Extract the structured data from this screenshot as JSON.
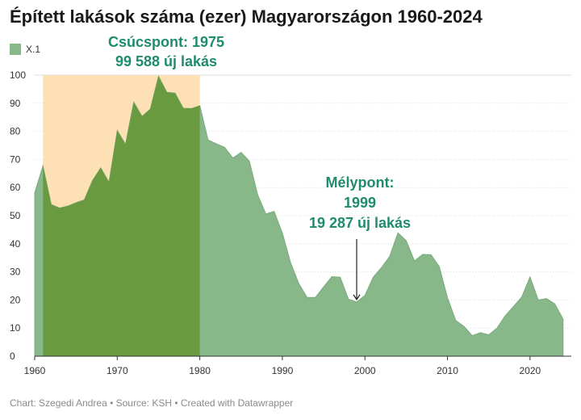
{
  "header": {
    "title": "Épített lakások száma (ezer) Magyarországon 1960-2024"
  },
  "legend": {
    "series_label": "X.1"
  },
  "footer": {
    "chart_by": "Chart: Szegedi Andrea",
    "source": "Source: KSH",
    "created_with": "Created with Datawrapper",
    "separator": " • "
  },
  "colors": {
    "area_fill": "#88b88a",
    "area_stroke": "#7aaa7c",
    "highlight_band": "#fde0b3",
    "overlap_fill": "#6a9a40",
    "annotation_text": "#1f8c6e",
    "grid": "#dddddd",
    "axis": "#333333"
  },
  "chart_data": {
    "type": "area",
    "title": "Épített lakások száma (ezer) Magyarországon 1960-2024",
    "xlabel": "",
    "ylabel": "",
    "xlim": [
      1960,
      2025
    ],
    "ylim": [
      0,
      100
    ],
    "x_ticks": [
      1960,
      1970,
      1980,
      1990,
      2000,
      2010,
      2020
    ],
    "y_ticks": [
      0,
      10,
      20,
      30,
      40,
      50,
      60,
      70,
      80,
      90,
      100
    ],
    "grid": true,
    "legend_position": "top-left",
    "highlight_range": {
      "x_start": 1961,
      "x_end": 1980
    },
    "series": [
      {
        "name": "X.1",
        "x": [
          1960,
          1961,
          1962,
          1963,
          1964,
          1965,
          1966,
          1967,
          1968,
          1969,
          1970,
          1971,
          1972,
          1973,
          1974,
          1975,
          1976,
          1977,
          1978,
          1979,
          1980,
          1981,
          1982,
          1983,
          1984,
          1985,
          1986,
          1987,
          1988,
          1989,
          1990,
          1991,
          1992,
          1993,
          1994,
          1995,
          1996,
          1997,
          1998,
          1999,
          2000,
          2001,
          2002,
          2003,
          2004,
          2005,
          2006,
          2007,
          2008,
          2009,
          2010,
          2011,
          2012,
          2013,
          2014,
          2015,
          2016,
          2017,
          2018,
          2019,
          2020,
          2021,
          2022,
          2023,
          2024
        ],
        "values": [
          58.1,
          67.7,
          54.0,
          52.7,
          53.4,
          54.6,
          55.6,
          62.5,
          67.0,
          61.9,
          80.3,
          75.4,
          90.4,
          85.3,
          87.9,
          99.6,
          93.9,
          93.6,
          88.2,
          88.1,
          89.1,
          76.9,
          75.6,
          74.3,
          70.5,
          72.5,
          69.4,
          57.5,
          50.6,
          51.5,
          43.8,
          33.2,
          25.8,
          20.9,
          20.9,
          24.7,
          28.3,
          28.1,
          20.3,
          19.3,
          21.6,
          28.1,
          31.5,
          35.5,
          43.9,
          41.1,
          33.9,
          36.2,
          36.1,
          31.9,
          20.8,
          12.7,
          10.6,
          7.3,
          8.4,
          7.6,
          10.0,
          14.4,
          17.7,
          21.1,
          28.2,
          20.0,
          20.5,
          18.6,
          13.2
        ]
      }
    ],
    "annotations": [
      {
        "label": "peak",
        "line1": "Csúcspont: 1975",
        "line2": "99 588 új lakás",
        "x": 1975,
        "y": 99.588
      },
      {
        "label": "trough",
        "line1": "Mélypont:",
        "line2": "1999",
        "line3": "19 287 új lakás",
        "x": 1999,
        "y": 19.287
      }
    ]
  }
}
